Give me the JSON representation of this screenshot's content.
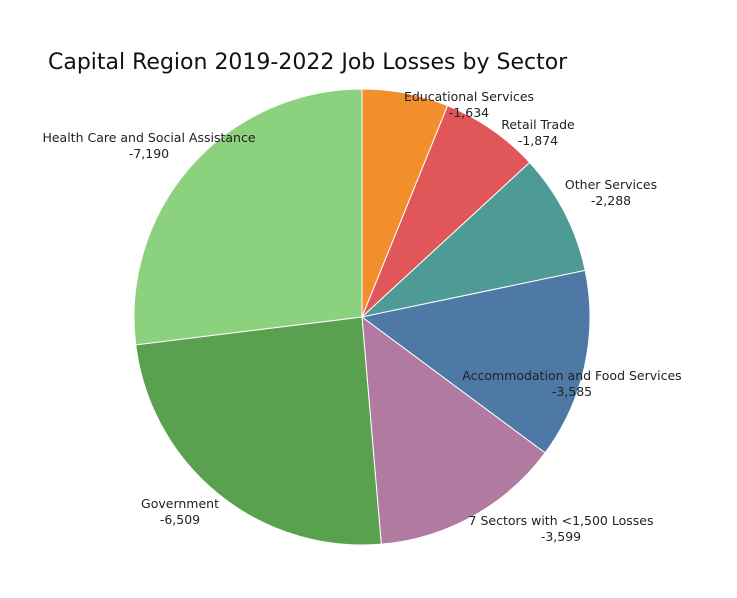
{
  "chart_data": {
    "type": "pie",
    "title": "Capital Region 2019-2022 Job Losses by Sector",
    "slices": [
      {
        "label": "Educational Services",
        "value": -1634,
        "value_text": "-1,634",
        "color": "#f28e2b"
      },
      {
        "label": "Retail Trade",
        "value": -1874,
        "value_text": "-1,874",
        "color": "#e15759"
      },
      {
        "label": "Other Services",
        "value": -2288,
        "value_text": "-2,288",
        "color": "#4e9a94"
      },
      {
        "label": "Accommodation and Food Services",
        "value": -3585,
        "value_text": "-3,585",
        "color": "#4e79a7"
      },
      {
        "label": "7 Sectors with <1,500 Losses",
        "value": -3599,
        "value_text": "-3,599",
        "color": "#b07aa1"
      },
      {
        "label": "Government",
        "value": -6509,
        "value_text": "-6,509",
        "color": "#59a14f"
      },
      {
        "label": "Health Care and Social Assistance",
        "value": -7190,
        "value_text": "-7,190",
        "color": "#8cd17d"
      }
    ]
  }
}
